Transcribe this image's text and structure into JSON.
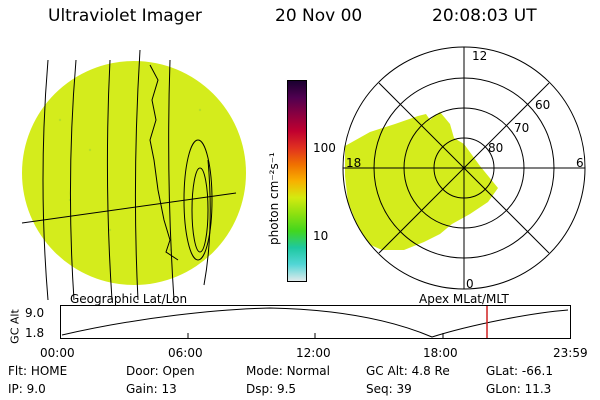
{
  "header": {
    "instrument": "Ultraviolet Imager",
    "date": "20 Nov 00",
    "time": "20:08:03 UT"
  },
  "colors": {
    "aurora_fill": "#d4ec1c",
    "background": "#ffffff",
    "line": "#000000",
    "marker": "#d02020"
  },
  "colorbar": {
    "unit_label": "photon cm⁻²s⁻¹",
    "ticks": [
      "100",
      "10"
    ],
    "stops": [
      "#dfe9ea",
      "#52d6d6",
      "#1ec8a0",
      "#42d61e",
      "#8ce010",
      "#d4ea10",
      "#f8b000",
      "#f07000",
      "#e03020",
      "#c00030",
      "#8a0040",
      "#500050",
      "#1a0030"
    ]
  },
  "left_panel": {
    "caption": "Geographic Lat/Lon"
  },
  "right_panel": {
    "caption": "Apex MLat/MLT",
    "mlt_labels": {
      "top": "12",
      "left": "18",
      "right": "6",
      "bottom": "0"
    },
    "lat_labels": [
      "60",
      "70",
      "80"
    ]
  },
  "altitude_plot": {
    "ylabel": "GC Alt",
    "yticks": [
      "9.0",
      "1.8"
    ],
    "xticks": [
      "00:00",
      "06:00",
      "12:00",
      "18:00",
      "23:59"
    ]
  },
  "status": {
    "flt": {
      "label": "Flt:",
      "value": "HOME"
    },
    "ip": {
      "label": "IP:",
      "value": "9.0"
    },
    "door": {
      "label": "Door:",
      "value": "Open"
    },
    "gain": {
      "label": "Gain:",
      "value": "13"
    },
    "mode": {
      "label": "Mode:",
      "value": "Normal"
    },
    "dsp": {
      "label": "Dsp:",
      "value": "9.5"
    },
    "gc_alt": {
      "label": "GC Alt:",
      "value": "4.8 Re"
    },
    "seq": {
      "label": "Seq:",
      "value": "39"
    },
    "glat": {
      "label": "GLat:",
      "value": "-66.1"
    },
    "glon": {
      "label": "GLon:",
      "value": "11.3"
    }
  }
}
